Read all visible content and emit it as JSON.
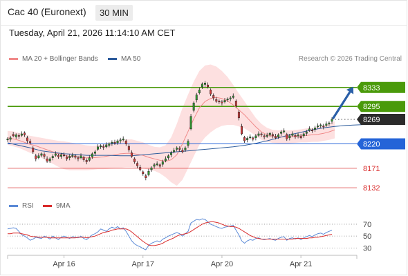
{
  "header": {
    "title": "Cac 40 (Euronext)",
    "timeframe": "30 MIN"
  },
  "timestamp": "Tuesday, April 21, 2026 11:14:10 AM CET",
  "legend": {
    "bollinger": {
      "label": "MA 20 + Bollinger Bands",
      "color": "#f08a8a"
    },
    "ma50": {
      "label": "MA 50",
      "color": "#2d5c9c"
    }
  },
  "credit": "Research © 2026 Trading Central",
  "rsi_legend": {
    "rsi": {
      "label": "RSI",
      "color": "#5b8ad6"
    },
    "ma9": {
      "label": "9MA",
      "color": "#d92b2b"
    }
  },
  "chart_data": {
    "type": "candlestick",
    "x_ticks": [
      "Apr 16",
      "Apr 17",
      "Apr 20",
      "Apr 21"
    ],
    "price_ylim": [
      8110,
      8370
    ],
    "current_price": 8269,
    "levels": [
      {
        "value": 8333,
        "label": "8333",
        "kind": "resistance",
        "color": "#4a9a0a"
      },
      {
        "value": 8295,
        "label": "8295",
        "kind": "resistance",
        "color": "#4a9a0a"
      },
      {
        "value": 8220,
        "label": "8220",
        "kind": "pivot",
        "color": "#2464d8"
      },
      {
        "value": 8171,
        "label": "8171",
        "kind": "support",
        "color": "#d92b2b"
      },
      {
        "value": 8132,
        "label": "8132",
        "kind": "support",
        "color": "#d92b2b"
      }
    ],
    "close": [
      8230,
      8232,
      8236,
      8238,
      8235,
      8240,
      8238,
      8226,
      8222,
      8204,
      8190,
      8196,
      8200,
      8195,
      8185,
      8190,
      8195,
      8200,
      8194,
      8198,
      8196,
      8190,
      8195,
      8197,
      8193,
      8190,
      8196,
      8188,
      8184,
      8192,
      8200,
      8204,
      8214,
      8216,
      8213,
      8218,
      8220,
      8223,
      8221,
      8226,
      8228,
      8230,
      8220,
      8208,
      8195,
      8184,
      8176,
      8168,
      8160,
      8152,
      8165,
      8172,
      8178,
      8180,
      8175,
      8184,
      8190,
      8196,
      8202,
      8207,
      8212,
      8209,
      8204,
      8212,
      8225,
      8275,
      8302,
      8318,
      8328,
      8340,
      8342,
      8334,
      8320,
      8312,
      8305,
      8304,
      8302,
      8307,
      8310,
      8312,
      8316,
      8296,
      8272,
      8240,
      8226,
      8231,
      8234,
      8229,
      8236,
      8240,
      8238,
      8234,
      8237,
      8241,
      8236,
      8232,
      8238,
      8244,
      8246,
      8230,
      8236,
      8240,
      8234,
      8238,
      8232,
      8240,
      8244,
      8250,
      8246,
      8252,
      8256,
      8258,
      8254,
      8260,
      8262,
      8269
    ],
    "open_offset": [
      -2,
      -3,
      3,
      -4,
      2,
      -3,
      4,
      6,
      3,
      8,
      6,
      -4,
      -3,
      4,
      5,
      -4,
      -3,
      -3,
      3,
      -3,
      2,
      4,
      -3,
      -2,
      3,
      2,
      -4,
      5,
      3,
      -5,
      -6,
      -3,
      -5,
      -2,
      2,
      -4,
      -3,
      -2,
      2,
      -4,
      -2,
      -2,
      6,
      7,
      7,
      6,
      5,
      5,
      4,
      4,
      -7,
      -4,
      -3,
      -2,
      3,
      -5,
      -4,
      -4,
      -4,
      -3,
      -3,
      2,
      3,
      -4,
      -8,
      -25,
      -15,
      -10,
      -6,
      -6,
      -3,
      4,
      8,
      5,
      4,
      2,
      2,
      -3,
      -2,
      -2,
      -3,
      10,
      12,
      15,
      7,
      -3,
      -2,
      3,
      -4,
      -3,
      2,
      2,
      -2,
      -3,
      3,
      3,
      -4,
      -3,
      -2,
      9,
      -4,
      -3,
      3,
      -2,
      3,
      -4,
      -3,
      -3,
      2,
      -3,
      -2,
      -2,
      2,
      -3,
      -2,
      -4
    ],
    "ma20": [
      8232,
      8230,
      8227,
      8223,
      8219,
      8216,
      8212,
      8208,
      8204,
      8200,
      8197,
      8195,
      8194,
      8193,
      8192,
      8192,
      8193,
      8194,
      8196,
      8198,
      8200,
      8201,
      8201,
      8199,
      8197,
      8193,
      8190,
      8187,
      8185,
      8188,
      8198,
      8220,
      8245,
      8270,
      8292,
      8305,
      8311,
      8313,
      8311,
      8306,
      8298,
      8288,
      8278,
      8266,
      8254,
      8244,
      8238,
      8235,
      8234,
      8234,
      8234,
      8235,
      8236,
      8237,
      8238,
      8239,
      8241,
      8244,
      8248
    ],
    "ma20_x": [
      0,
      2,
      4,
      6,
      8,
      10,
      12,
      14,
      16,
      18,
      20,
      22,
      24,
      26,
      28,
      30,
      32,
      34,
      36,
      38,
      40,
      42,
      44,
      46,
      48,
      50,
      52,
      54,
      56,
      58,
      60,
      62,
      64,
      66,
      68,
      70,
      72,
      74,
      76,
      78,
      80,
      82,
      84,
      86,
      88,
      90,
      92,
      94,
      96,
      98,
      100,
      102,
      104,
      106,
      108,
      110,
      112,
      114,
      116
    ],
    "bb_width": [
      14,
      15,
      15,
      16,
      17,
      18,
      20,
      22,
      24,
      26,
      28,
      28,
      27,
      26,
      25,
      24,
      24,
      25,
      26,
      27,
      28,
      28,
      28,
      27,
      26,
      25,
      24,
      26,
      32,
      45,
      62,
      72,
      74,
      75,
      74,
      72,
      68,
      62,
      55,
      48,
      40,
      33,
      27,
      22,
      18,
      16,
      14,
      13,
      13,
      13,
      13,
      13,
      13,
      14,
      14,
      15,
      15,
      16,
      17
    ],
    "ma50": [
      8222,
      8217,
      8212,
      8206,
      8203,
      8200,
      8199,
      8197,
      8197,
      8197,
      8196,
      8196,
      8198,
      8200,
      8202,
      8204,
      8206,
      8208,
      8210,
      8212,
      8214,
      8217,
      8221,
      8226,
      8232,
      8238,
      8243,
      8248,
      8252,
      8255,
      8257,
      8258,
      8259,
      8261,
      8263
    ],
    "ma50_step": 4,
    "rsi_ylim": [
      20,
      85
    ],
    "rsi_levels": [
      70,
      50,
      30
    ],
    "rsi": [
      62,
      63,
      64,
      63,
      58,
      52,
      50,
      47,
      43,
      45,
      48,
      47,
      46,
      50,
      48,
      45,
      50,
      47,
      44,
      48,
      50,
      48,
      46,
      49,
      48,
      47,
      50,
      46,
      44,
      48,
      52,
      54,
      57,
      62,
      60,
      58,
      62,
      65,
      63,
      66,
      62,
      64,
      58,
      50,
      42,
      37,
      34,
      32,
      29,
      27,
      34,
      38,
      40,
      42,
      40,
      45,
      47,
      50,
      52,
      54,
      56,
      54,
      50,
      54,
      58,
      72,
      75,
      78,
      77,
      79,
      78,
      74,
      70,
      68,
      66,
      64,
      63,
      65,
      66,
      67,
      68,
      60,
      52,
      42,
      38,
      42,
      44,
      43,
      46,
      47,
      45,
      44,
      45,
      46,
      44,
      43,
      46,
      48,
      49,
      43,
      46,
      47,
      45,
      47,
      44,
      47,
      49,
      51,
      49,
      52,
      54,
      55,
      53,
      56,
      58,
      60
    ],
    "rsi_ma9": [
      54,
      54,
      55,
      55,
      55,
      54,
      53,
      52,
      50,
      49,
      49,
      48,
      48,
      48,
      48,
      47,
      47,
      47,
      47,
      47,
      47,
      47,
      47,
      47,
      47,
      48,
      48,
      48,
      47,
      48,
      49,
      50,
      52,
      54,
      56,
      57,
      58,
      60,
      61,
      62,
      62,
      62,
      62,
      60,
      57,
      53,
      49,
      45,
      41,
      38,
      35,
      34,
      34,
      35,
      36,
      38,
      41,
      43,
      45,
      47,
      50,
      52,
      53,
      54,
      55,
      58,
      61,
      64,
      67,
      70,
      72,
      73,
      74,
      74,
      73,
      72,
      70,
      68,
      67,
      66,
      66,
      65,
      63,
      60,
      57,
      54,
      51,
      49,
      47,
      46,
      45,
      45,
      45,
      45,
      45,
      45,
      45,
      45,
      45,
      45,
      45,
      45,
      46,
      46,
      46,
      46,
      46,
      47,
      47,
      48,
      48,
      49,
      50,
      51,
      52,
      53
    ]
  }
}
